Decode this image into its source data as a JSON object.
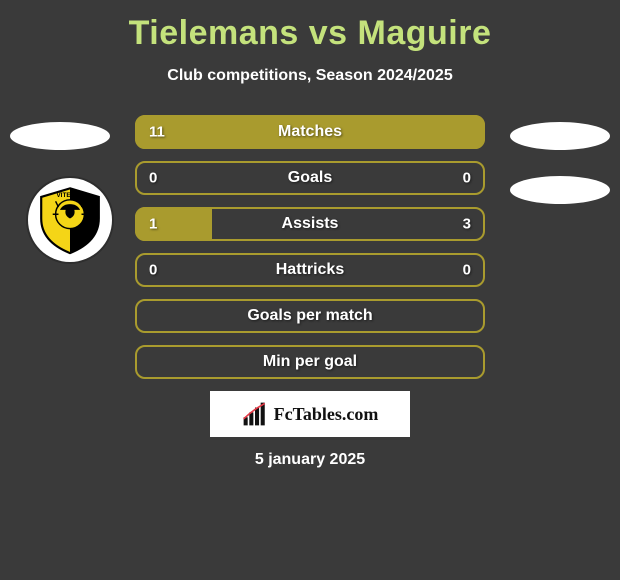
{
  "title": "Tielemans vs Maguire",
  "subtitle": "Club competitions, Season 2024/2025",
  "date": "5 january 2025",
  "watermark_text": "FcTables.com",
  "colors": {
    "accent_olive": "#a99b2e",
    "accent_green": "#a8cc3a",
    "accent_yellow": "#f4d517",
    "title_color": "#c4e27c",
    "bg": "#3a3a3a"
  },
  "rows": [
    {
      "label": "Matches",
      "left_val": "11",
      "right_val": "",
      "left_pct": 100,
      "right_pct": 0,
      "fill_color": "#a99b2e",
      "border_color": "#a99b2e",
      "show_left_val": true,
      "show_right_val": false
    },
    {
      "label": "Goals",
      "left_val": "0",
      "right_val": "0",
      "left_pct": 0,
      "right_pct": 0,
      "fill_color": "#a99b2e",
      "border_color": "#a99b2e",
      "show_left_val": true,
      "show_right_val": true
    },
    {
      "label": "Assists",
      "left_val": "1",
      "right_val": "3",
      "left_pct": 22,
      "right_pct": 0,
      "fill_color": "#a99b2e",
      "border_color": "#a99b2e",
      "show_left_val": true,
      "show_right_val": true
    },
    {
      "label": "Hattricks",
      "left_val": "0",
      "right_val": "0",
      "left_pct": 0,
      "right_pct": 0,
      "fill_color": "#a99b2e",
      "border_color": "#a99b2e",
      "show_left_val": true,
      "show_right_val": true
    },
    {
      "label": "Goals per match",
      "left_val": "",
      "right_val": "",
      "left_pct": 0,
      "right_pct": 0,
      "fill_color": "#a99b2e",
      "border_color": "#a99b2e",
      "show_left_val": false,
      "show_right_val": false
    },
    {
      "label": "Min per goal",
      "left_val": "",
      "right_val": "",
      "left_pct": 0,
      "right_pct": 0,
      "fill_color": "#a99b2e",
      "border_color": "#a99b2e",
      "show_left_val": false,
      "show_right_val": false
    }
  ]
}
